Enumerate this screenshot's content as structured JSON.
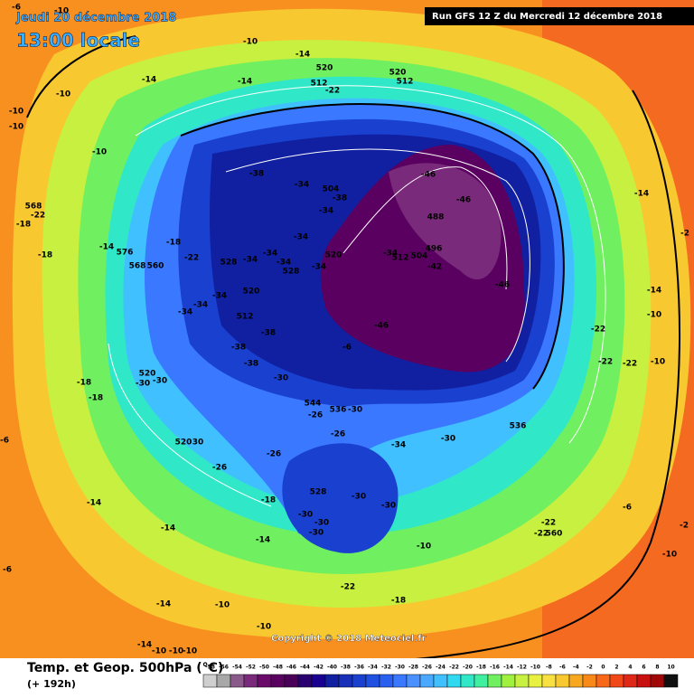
{
  "header": {
    "date": "Jeudi 20 décembre 2018",
    "time": "13:00 locale",
    "run": "Run GFS 12 Z du Mercredi 12 décembre 2018"
  },
  "footer": {
    "copyright": "Copyright © 2018 Meteociel.fr",
    "variable": "Temp. et Geop. 500hPa (°C)",
    "lead": "(+ 192h)"
  },
  "legend": {
    "ticks": [
      -58,
      -56,
      -54,
      -52,
      -50,
      -48,
      -46,
      -44,
      -42,
      -40,
      -38,
      -36,
      -34,
      -32,
      -30,
      -28,
      -26,
      -24,
      -22,
      -20,
      -18,
      -16,
      -14,
      -12,
      -10,
      -8,
      -6,
      -4,
      -2,
      0,
      2,
      4,
      6,
      8,
      10
    ],
    "colors": [
      "#cfcfcf",
      "#a8a8a8",
      "#8a5a8a",
      "#7a2a7a",
      "#6a0a6a",
      "#5a0060",
      "#4a0058",
      "#2a0070",
      "#1a0090",
      "#1020a0",
      "#1830b8",
      "#1a40d0",
      "#2050e0",
      "#2a60f0",
      "#3a78ff",
      "#4a90ff",
      "#4aa8ff",
      "#40c0ff",
      "#30d8f0",
      "#30e8c8",
      "#40f0a0",
      "#70f060",
      "#a0f040",
      "#c8f040",
      "#e8f040",
      "#f8e040",
      "#f8c830",
      "#f8a820",
      "#f88818",
      "#f86818",
      "#f04818",
      "#e02818",
      "#c81010",
      "#a00808",
      "#101010"
    ]
  },
  "map_labels": [
    -6,
    -10,
    -14,
    -14,
    -14,
    -10,
    -10,
    -10,
    -10,
    -10,
    568,
    -22,
    -18,
    -14,
    576,
    -18,
    -18,
    -22,
    568,
    560,
    528,
    -34,
    -34,
    -34,
    528,
    -34,
    520,
    -34,
    -34,
    504,
    -38,
    -34,
    -38,
    520,
    512,
    -22,
    520,
    512,
    -46,
    -46,
    488,
    496,
    -42,
    -34,
    512,
    504,
    -46,
    -46,
    520,
    512,
    -38,
    -38,
    -38,
    -34,
    -34,
    -34,
    -30,
    -14,
    -14,
    -10,
    -22,
    -22,
    -22,
    -10,
    520,
    -30,
    -30,
    -18,
    -18,
    544,
    -26,
    536,
    -30,
    -30,
    -34,
    -26,
    536,
    520,
    30,
    -26,
    -26,
    528,
    -30,
    -30,
    -30,
    -30,
    -30,
    -18,
    -14,
    -14,
    -14,
    -22,
    -22,
    560,
    -6,
    -2,
    -6,
    -14,
    -10,
    -10,
    -18,
    -22,
    -10,
    -14,
    -10,
    -10,
    -10,
    -10,
    -2,
    -6,
    -6
  ]
}
